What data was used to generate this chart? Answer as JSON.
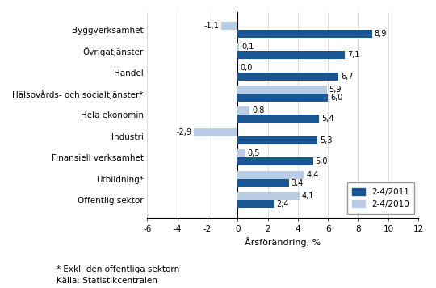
{
  "categories": [
    "Byggverksamhet",
    "Övrigatjänster",
    "Handel",
    "Hälsovårds- och socialtjänster*",
    "Hela ekonomin",
    "Industri",
    "Finansiell verksamhet",
    "Utbildning*",
    "Offentlig sektor"
  ],
  "values_2011": [
    8.9,
    7.1,
    6.7,
    6.0,
    5.4,
    5.3,
    5.0,
    3.4,
    2.4
  ],
  "values_2010": [
    -1.1,
    0.1,
    0.0,
    5.9,
    0.8,
    -2.9,
    0.5,
    4.4,
    4.1
  ],
  "color_2011": "#1a5694",
  "color_2010": "#b8cce4",
  "xlabel": "Årsförändring, %",
  "legend_2011": "2-4/2011",
  "legend_2010": "2-4/2010",
  "xlim": [
    -6,
    12
  ],
  "xticks": [
    -6,
    -4,
    -2,
    0,
    2,
    4,
    6,
    8,
    10,
    12
  ],
  "footnote1": "* Exkl. den offentliga sektorn",
  "footnote2": "Källa: Statistikcentralen"
}
